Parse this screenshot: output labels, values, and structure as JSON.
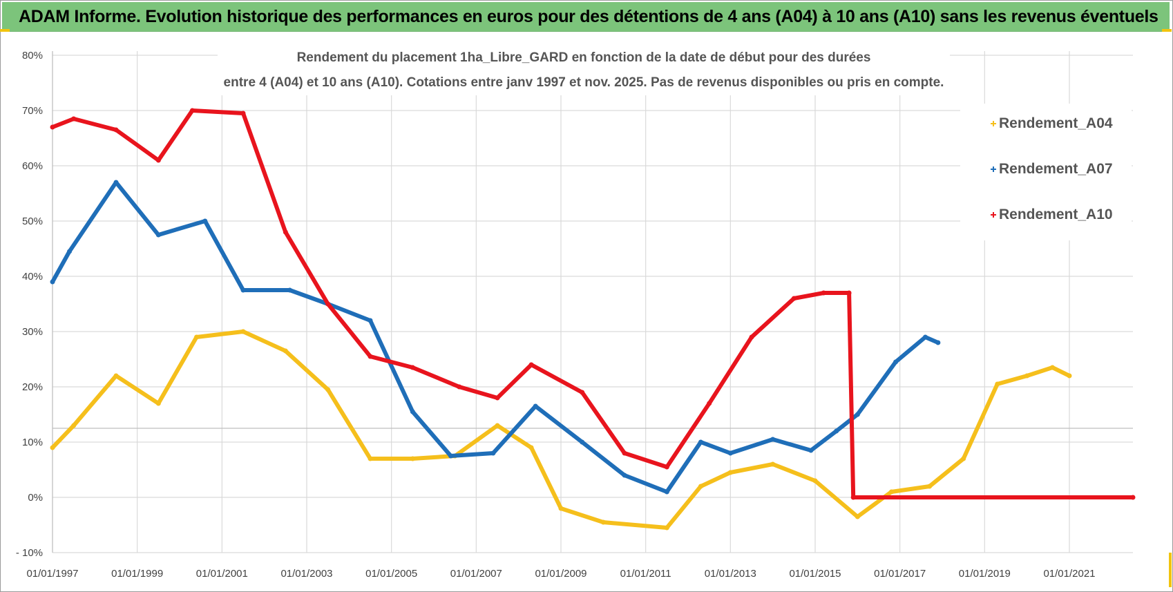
{
  "banner": {
    "title": "ADAM Informe. Evolution historique des performances en euros pour des détentions de 4 ans (A04) à 10 ans (A10) sans les revenus éventuels"
  },
  "colors": {
    "banner_bg": "#7cc47b",
    "A04": "#f5bf1c",
    "A07": "#1f6eb8",
    "A10": "#e8141d",
    "grid": "#d9d9d9"
  },
  "chart_data": {
    "type": "line",
    "title_line1": "Rendement du placement 1ha_Libre_GARD en fonction de la date de début pour des durées",
    "title_line2": "entre 4 (A04) et 10 ans (A10). Cotations entre janv 1997 et nov. 2025. Pas de revenus disponibles ou pris en compte.",
    "xlabel": "",
    "ylabel": "",
    "xlim": [
      1997.0,
      2022.5
    ],
    "ylim": [
      -10,
      80
    ],
    "y_ticks": [
      80,
      70,
      60,
      50,
      40,
      30,
      20,
      10,
      0,
      -10
    ],
    "y_tick_labels": [
      "80%",
      "70%",
      "60%",
      "50%",
      "40%",
      "30%",
      "20%",
      "10%",
      "0%",
      "- 10%"
    ],
    "x_ticks": [
      1997,
      1999,
      2001,
      2003,
      2005,
      2007,
      2009,
      2011,
      2013,
      2015,
      2017,
      2019,
      2021
    ],
    "x_tick_labels": [
      "01/01/1997",
      "01/01/1999",
      "01/01/2001",
      "01/01/2003",
      "01/01/2005",
      "01/01/2007",
      "01/01/2009",
      "01/01/2011",
      "01/01/2013",
      "01/01/2015",
      "01/01/2017",
      "01/01/2019",
      "01/01/2021"
    ],
    "grid": true,
    "legend_position": "top-right",
    "series": [
      {
        "name": "Rendement_A04",
        "color": "#f5bf1c",
        "points": [
          [
            1997.0,
            9
          ],
          [
            1997.5,
            13
          ],
          [
            1998.5,
            22
          ],
          [
            1999.5,
            17
          ],
          [
            2000.4,
            29
          ],
          [
            2001.5,
            30
          ],
          [
            2002.5,
            26.5
          ],
          [
            2003.5,
            19.5
          ],
          [
            2004.5,
            7
          ],
          [
            2005.5,
            7
          ],
          [
            2006.5,
            7.5
          ],
          [
            2007.5,
            13
          ],
          [
            2008.3,
            9
          ],
          [
            2009.0,
            -2
          ],
          [
            2010.0,
            -4.5
          ],
          [
            2011.5,
            -5.5
          ],
          [
            2012.3,
            2
          ],
          [
            2013.0,
            4.5
          ],
          [
            2014.0,
            6
          ],
          [
            2015.0,
            3
          ],
          [
            2016.0,
            -3.5
          ],
          [
            2016.8,
            1
          ],
          [
            2017.7,
            2
          ],
          [
            2018.5,
            7
          ],
          [
            2019.3,
            20.5
          ],
          [
            2020.0,
            22
          ],
          [
            2020.6,
            23.5
          ],
          [
            2021.0,
            22
          ]
        ]
      },
      {
        "name": "Rendement_A07",
        "color": "#1f6eb8",
        "points": [
          [
            1997.0,
            39
          ],
          [
            1997.4,
            44.5
          ],
          [
            1998.5,
            57
          ],
          [
            1999.5,
            47.5
          ],
          [
            2000.6,
            50
          ],
          [
            2001.5,
            37.5
          ],
          [
            2002.6,
            37.5
          ],
          [
            2003.5,
            35
          ],
          [
            2004.5,
            32
          ],
          [
            2005.5,
            15.5
          ],
          [
            2006.4,
            7.5
          ],
          [
            2007.4,
            8
          ],
          [
            2008.4,
            16.5
          ],
          [
            2009.5,
            10
          ],
          [
            2010.5,
            4
          ],
          [
            2011.5,
            1
          ],
          [
            2012.3,
            10
          ],
          [
            2013.0,
            8
          ],
          [
            2014.0,
            10.5
          ],
          [
            2014.9,
            8.5
          ],
          [
            2015.5,
            12
          ],
          [
            2016.0,
            15
          ],
          [
            2016.9,
            24.5
          ],
          [
            2017.6,
            29
          ],
          [
            2017.9,
            28
          ]
        ]
      },
      {
        "name": "Rendement_A10",
        "color": "#e8141d",
        "points": [
          [
            1997.0,
            67
          ],
          [
            1997.5,
            68.5
          ],
          [
            1998.5,
            66.5
          ],
          [
            1999.5,
            61
          ],
          [
            2000.3,
            70
          ],
          [
            2001.5,
            69.5
          ],
          [
            2002.5,
            48
          ],
          [
            2003.5,
            35
          ],
          [
            2004.5,
            25.5
          ],
          [
            2005.5,
            23.5
          ],
          [
            2006.6,
            20
          ],
          [
            2007.5,
            18
          ],
          [
            2008.3,
            24
          ],
          [
            2009.5,
            19
          ],
          [
            2010.5,
            8
          ],
          [
            2011.5,
            5.5
          ],
          [
            2012.5,
            17
          ],
          [
            2013.5,
            29
          ],
          [
            2014.5,
            36
          ],
          [
            2015.2,
            37
          ],
          [
            2015.8,
            37
          ],
          [
            2015.9,
            0
          ],
          [
            2022.5,
            0
          ]
        ]
      }
    ]
  }
}
